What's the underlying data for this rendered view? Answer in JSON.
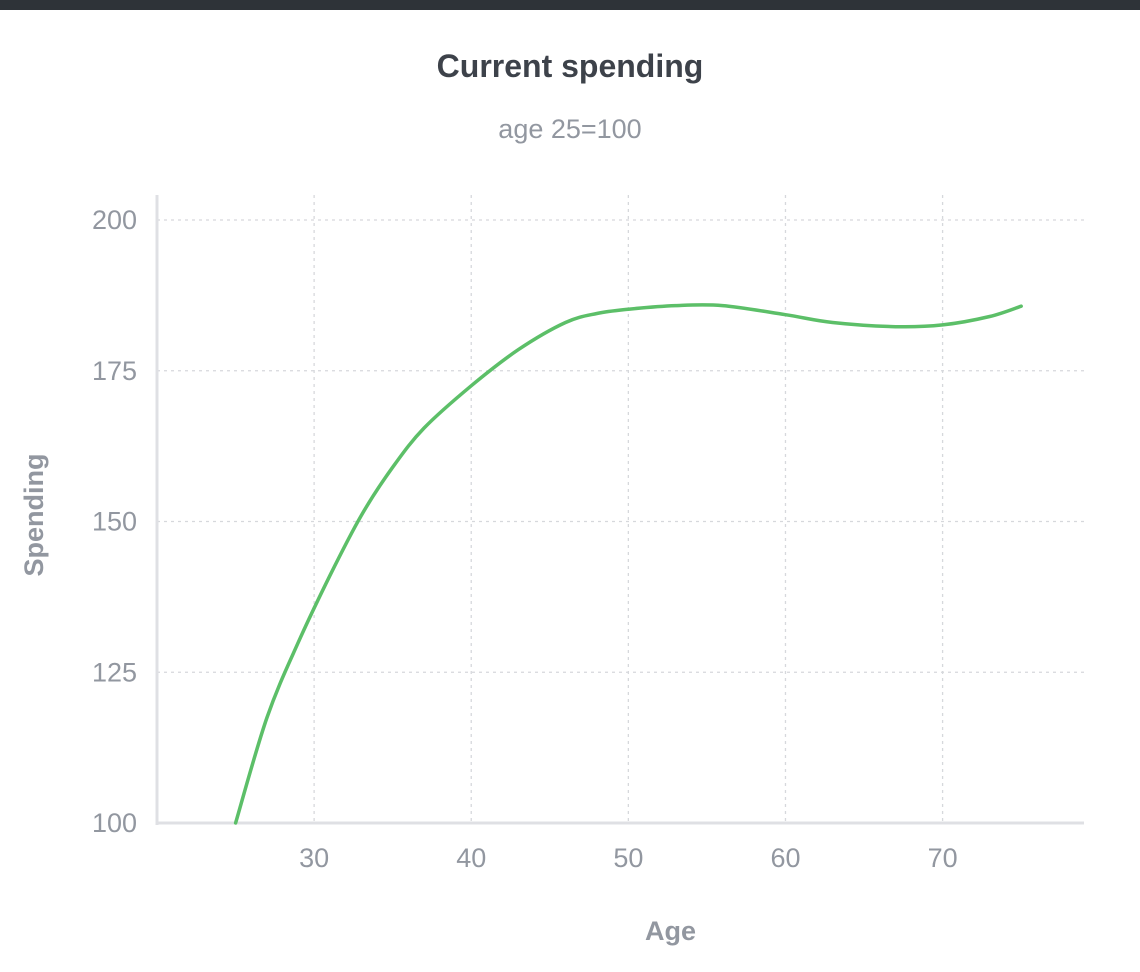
{
  "chart_data": {
    "type": "line",
    "title": "Current spending",
    "subtitle": "age 25=100",
    "xlabel": "Age",
    "ylabel": "Spending",
    "xlim": [
      20,
      79
    ],
    "ylim": [
      100,
      204
    ],
    "xticks": [
      30,
      40,
      50,
      60,
      70
    ],
    "yticks": [
      100,
      125,
      150,
      175,
      200
    ],
    "grid": true,
    "series": [
      {
        "color": "#5cbf68",
        "x": [
          25,
          27,
          29,
          31,
          33,
          35,
          37,
          40,
          43,
          46,
          48,
          50,
          53,
          56,
          60,
          63,
          67,
          70,
          73,
          75
        ],
        "y": [
          100,
          117.5,
          130,
          141,
          151,
          159,
          165.5,
          172.5,
          178.5,
          183,
          184.5,
          185.2,
          185.8,
          185.8,
          184.3,
          183,
          182.3,
          182.6,
          184,
          185.7
        ]
      }
    ]
  },
  "colors": {
    "line": "#5cbf68",
    "axis": "#dfe0e4",
    "grid": "#d6d8dc",
    "text": "#9297a0",
    "title": "#3d424a"
  }
}
